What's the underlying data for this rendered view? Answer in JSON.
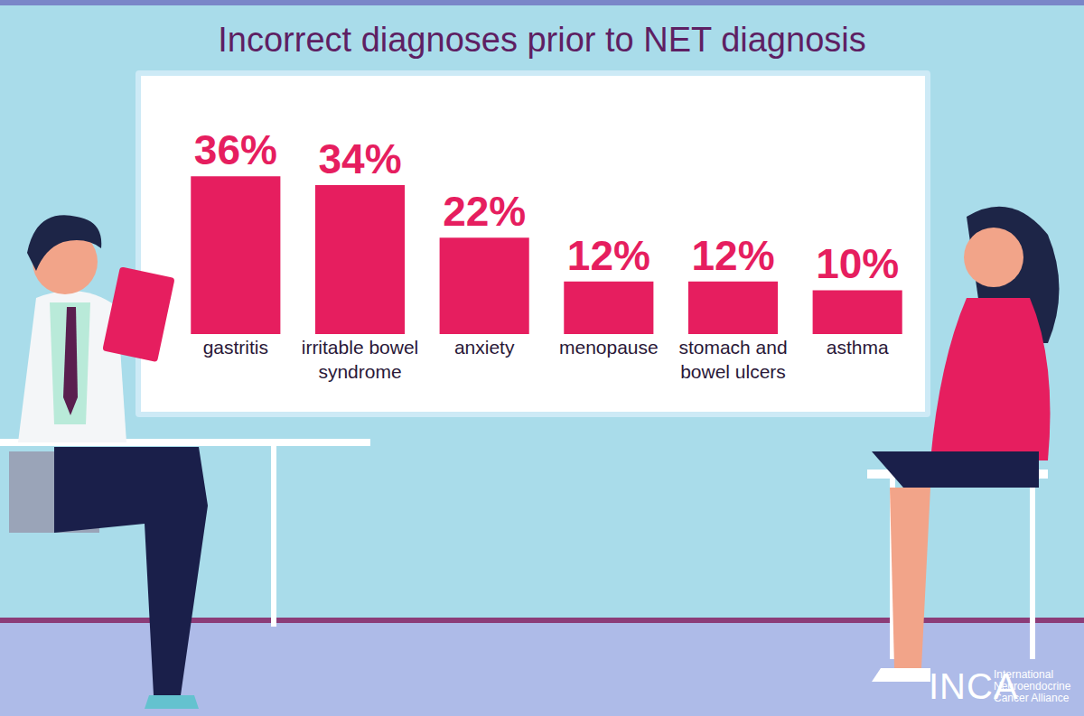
{
  "chart_data": {
    "type": "bar",
    "title": "Incorrect diagnoses prior to NET diagnosis",
    "categories": [
      "gastritis",
      "irritable bowel syndrome",
      "anxiety",
      "menopause",
      "stomach and bowel ulcers",
      "asthma"
    ],
    "values": [
      36,
      34,
      22,
      12,
      12,
      10
    ],
    "value_labels": [
      "36%",
      "34%",
      "22%",
      "12%",
      "12%",
      "10%"
    ],
    "color": "#e61e5f",
    "data_labels": true,
    "tick_labels": "x",
    "annotations": [
      "INCA",
      "International Neuroendocrine Cancer Alliance"
    ]
  }
}
